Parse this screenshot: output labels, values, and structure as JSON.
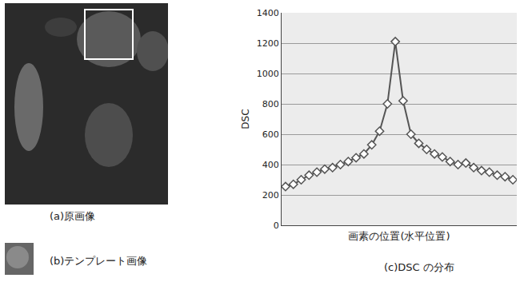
{
  "panels": [
    {
      "caption": "(a)原画像"
    },
    {
      "caption": "(b)テンプレート画像"
    }
  ],
  "chart_data": {
    "type": "line",
    "caption": "(c)DSC の分布",
    "x_label": "画素の位置(水平位置)",
    "y_label": "DSC",
    "categories": [
      null,
      null,
      null,
      null,
      null,
      null,
      null,
      null,
      null,
      null,
      null,
      null,
      null,
      null,
      null,
      null,
      null,
      null,
      null,
      null,
      null,
      null,
      null,
      null,
      null,
      null,
      null,
      null,
      null,
      null
    ],
    "values": [
      255,
      270,
      300,
      330,
      350,
      370,
      380,
      400,
      420,
      445,
      470,
      530,
      620,
      800,
      1210,
      820,
      600,
      540,
      500,
      470,
      450,
      420,
      400,
      410,
      380,
      360,
      350,
      330,
      320,
      300
    ],
    "color": "#555555",
    "marker": "diamond",
    "ylim": [
      0,
      1400
    ],
    "yticks": [
      0,
      200,
      400,
      600,
      800,
      1000,
      1200,
      1400
    ],
    "grid": true,
    "tick_labels": "y"
  }
}
